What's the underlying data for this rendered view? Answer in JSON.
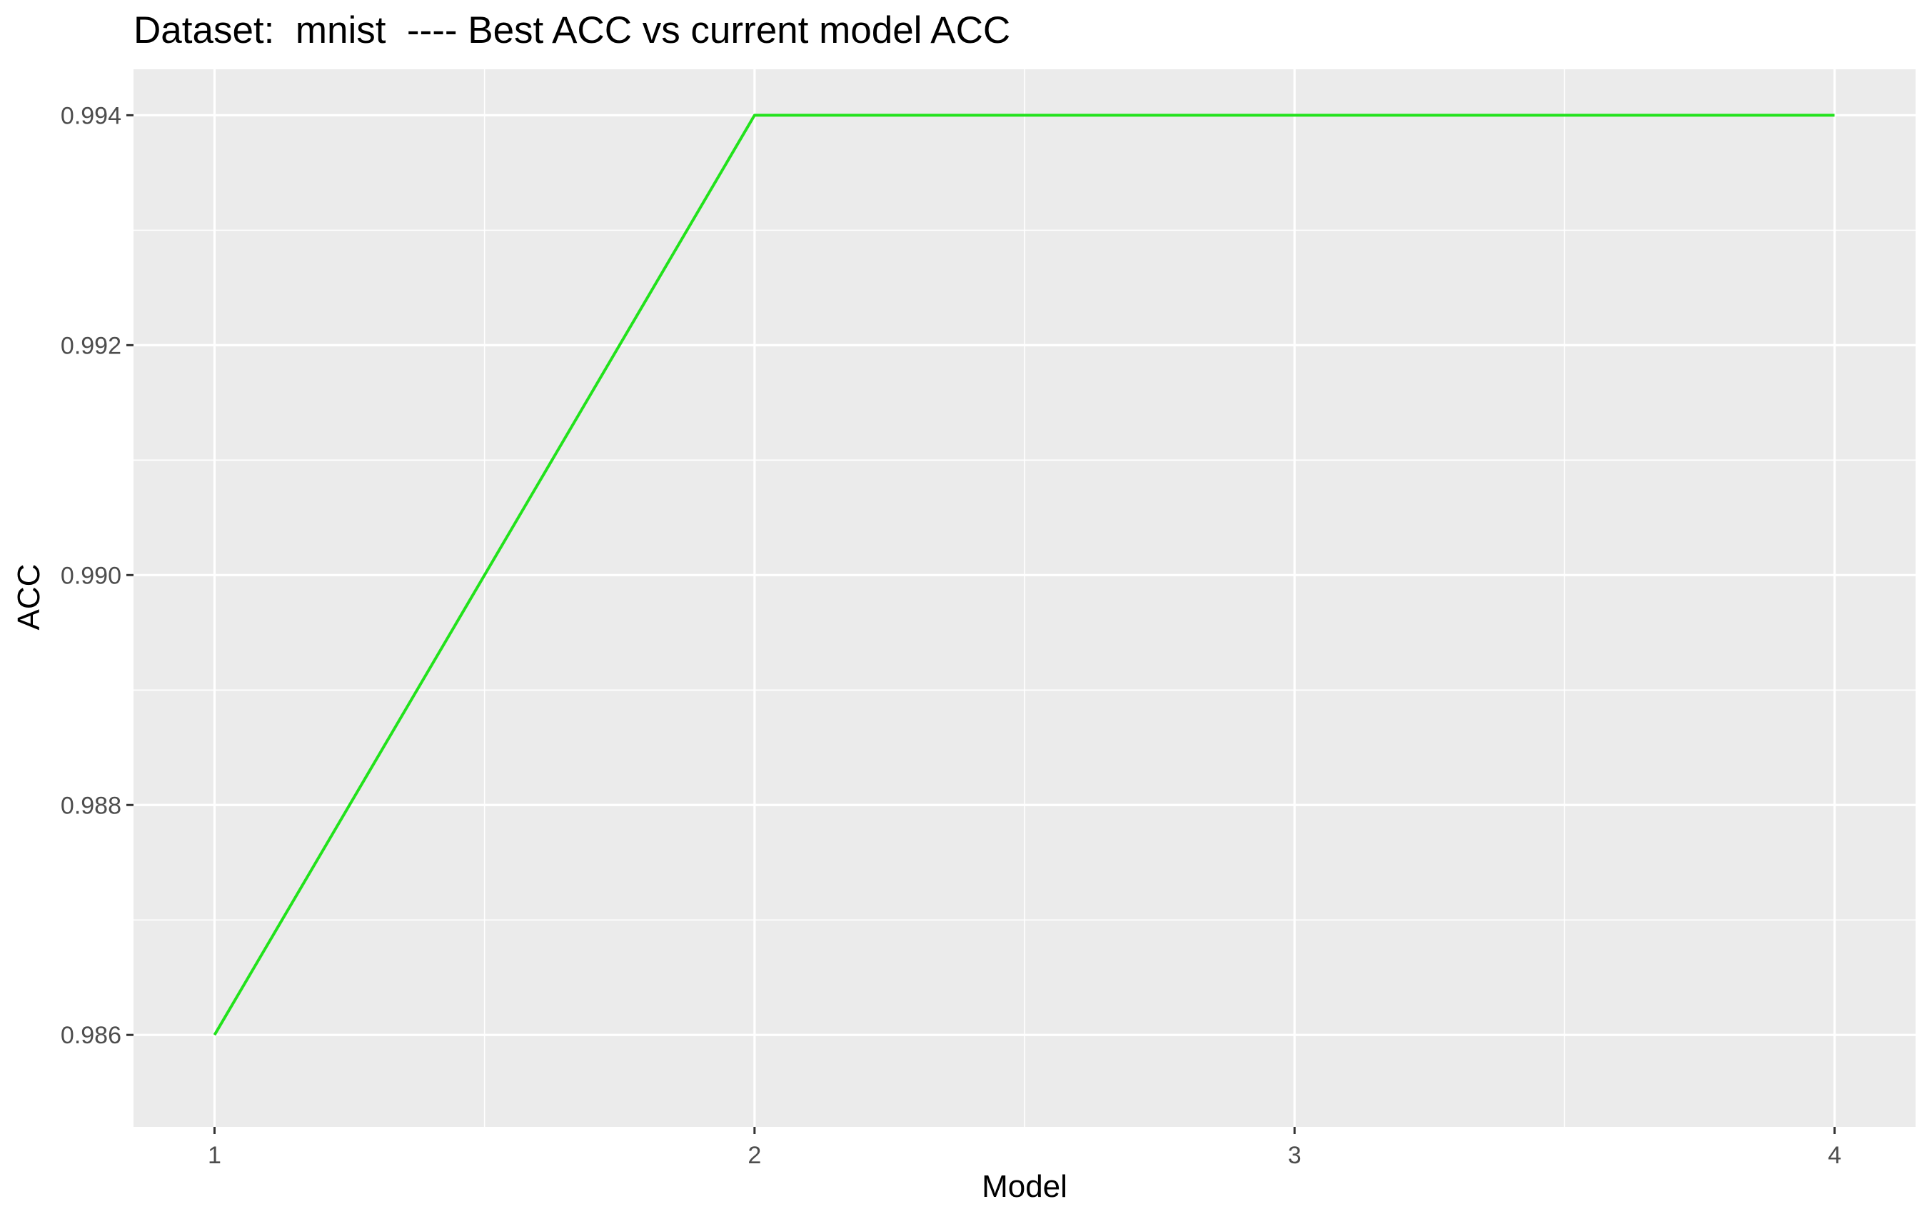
{
  "chart_data": {
    "type": "line",
    "title": "Dataset:  mnist  ---- Best ACC vs current model ACC",
    "xlabel": "Model",
    "ylabel": "ACC",
    "x": [
      1,
      2,
      3,
      4
    ],
    "series": [
      {
        "values": [
          0.986,
          0.994,
          0.994,
          0.994
        ],
        "color": "#22e21c"
      }
    ],
    "xlim": [
      0.85,
      4.15
    ],
    "ylim": [
      0.9852,
      0.9944
    ],
    "x_ticks": [
      1,
      2,
      3,
      4
    ],
    "x_tick_labels": [
      "1",
      "2",
      "3",
      "4"
    ],
    "y_ticks": [
      0.986,
      0.988,
      0.99,
      0.992,
      0.994
    ],
    "y_tick_labels": [
      "0.986",
      "0.988",
      "0.990",
      "0.992",
      "0.994"
    ],
    "x_minor_ticks": [
      1.5,
      2.5,
      3.5
    ],
    "y_minor_ticks": [
      0.987,
      0.989,
      0.991,
      0.993
    ],
    "grid": true,
    "legend": "none",
    "panel_color": "#ebebeb",
    "grid_color": "#ffffff"
  }
}
